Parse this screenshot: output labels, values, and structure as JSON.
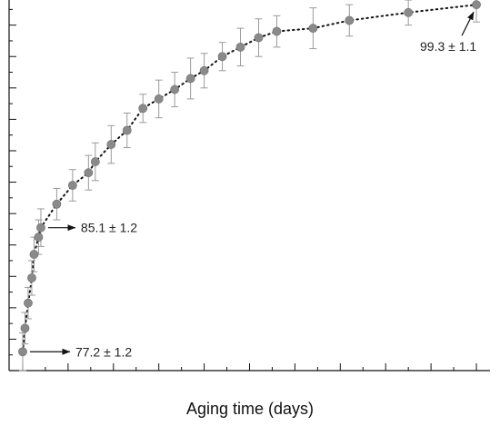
{
  "chart_data": {
    "type": "scatter",
    "title": "",
    "xlabel": "Aging time (days)",
    "ylabel": "",
    "xlim": [
      -0.3,
      10.3
    ],
    "ylim": [
      76,
      99.6
    ],
    "grid": false,
    "colors": {
      "marker": "#8a8a8a",
      "marker_edge": "#6e6e6e",
      "errorbar": "#9a9a9a",
      "line": "#111111",
      "axis": "#111111"
    },
    "series": [
      {
        "points": [
          {
            "x": 0.0,
            "y": 77.2,
            "err": 1.2
          },
          {
            "x": 0.05,
            "y": 78.7,
            "err": 1.0
          },
          {
            "x": 0.12,
            "y": 80.3,
            "err": 1.0
          },
          {
            "x": 0.2,
            "y": 81.9,
            "err": 1.1
          },
          {
            "x": 0.25,
            "y": 83.4,
            "err": 1.1
          },
          {
            "x": 0.35,
            "y": 84.5,
            "err": 1.1
          },
          {
            "x": 0.4,
            "y": 85.1,
            "err": 1.2
          },
          {
            "x": 0.75,
            "y": 86.6,
            "err": 1.0
          },
          {
            "x": 1.1,
            "y": 87.8,
            "err": 1.0
          },
          {
            "x": 1.45,
            "y": 88.6,
            "err": 1.1
          },
          {
            "x": 1.6,
            "y": 89.3,
            "err": 1.2
          },
          {
            "x": 1.95,
            "y": 90.4,
            "err": 1.2
          },
          {
            "x": 2.3,
            "y": 91.3,
            "err": 1.1
          },
          {
            "x": 2.65,
            "y": 92.7,
            "err": 0.9
          },
          {
            "x": 3.0,
            "y": 93.3,
            "err": 1.2
          },
          {
            "x": 3.35,
            "y": 93.9,
            "err": 1.1
          },
          {
            "x": 3.7,
            "y": 94.6,
            "err": 1.3
          },
          {
            "x": 4.0,
            "y": 95.1,
            "err": 1.1
          },
          {
            "x": 4.4,
            "y": 96.0,
            "err": 0.9
          },
          {
            "x": 4.8,
            "y": 96.6,
            "err": 1.2
          },
          {
            "x": 5.2,
            "y": 97.2,
            "err": 1.2
          },
          {
            "x": 5.6,
            "y": 97.6,
            "err": 1.0
          },
          {
            "x": 6.4,
            "y": 97.8,
            "err": 1.3
          },
          {
            "x": 7.2,
            "y": 98.3,
            "err": 1.0
          },
          {
            "x": 8.5,
            "y": 98.8,
            "err": 0.8
          },
          {
            "x": 10.0,
            "y": 99.3,
            "err": 1.1
          }
        ]
      }
    ],
    "annotations": [
      {
        "text": "77.2 ± 1.2",
        "x": 0.0,
        "y": 77.2
      },
      {
        "text": "85.1 ± 1.2",
        "x": 0.4,
        "y": 85.1
      },
      {
        "text": "99.3 ± 1.1",
        "x": 10.0,
        "y": 99.3
      }
    ]
  }
}
